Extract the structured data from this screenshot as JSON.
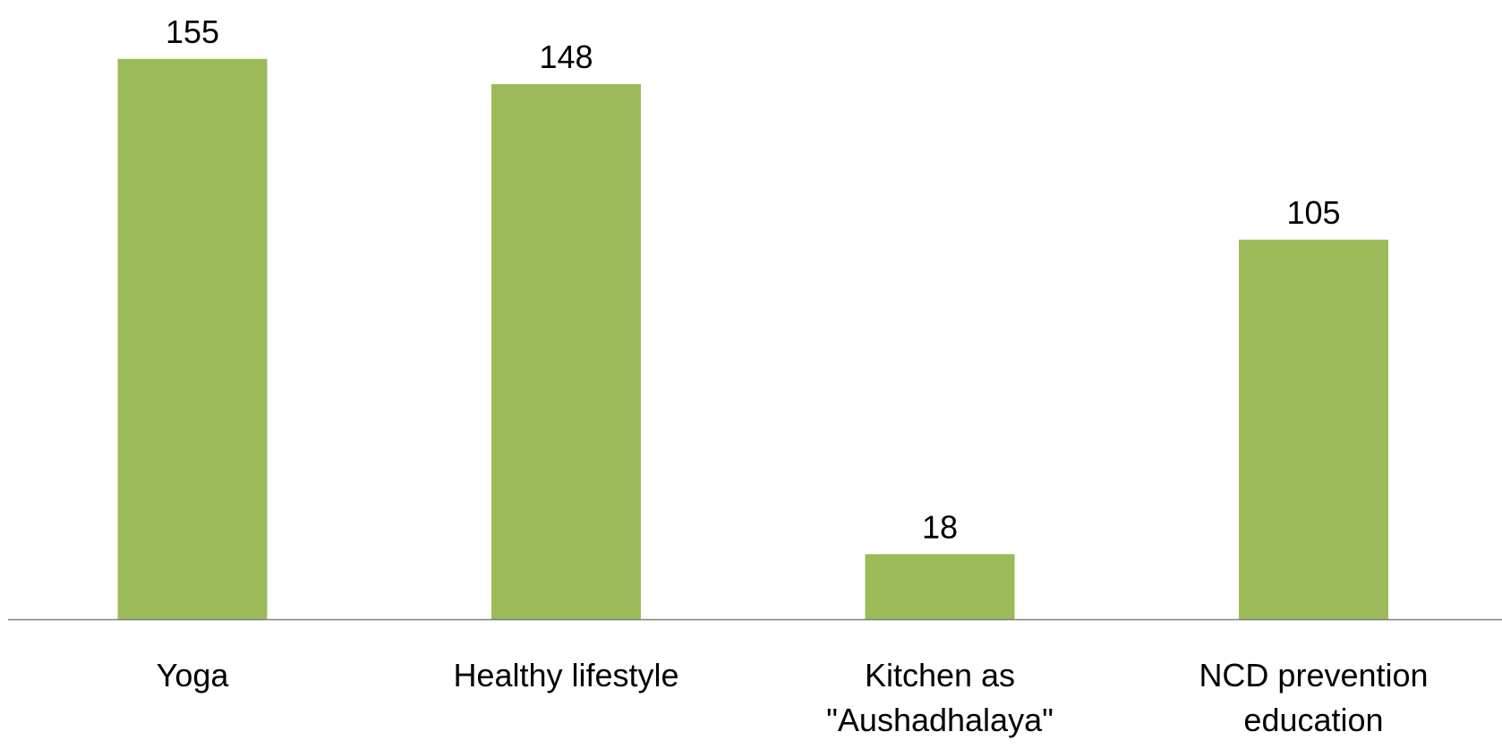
{
  "chart_data": {
    "type": "bar",
    "categories": [
      "Yoga",
      "Healthy lifestyle",
      "Kitchen as \"Aushadhalaya\"",
      "NCD prevention education"
    ],
    "values": [
      155,
      148,
      18,
      105
    ],
    "color": "#9bbb59"
  }
}
